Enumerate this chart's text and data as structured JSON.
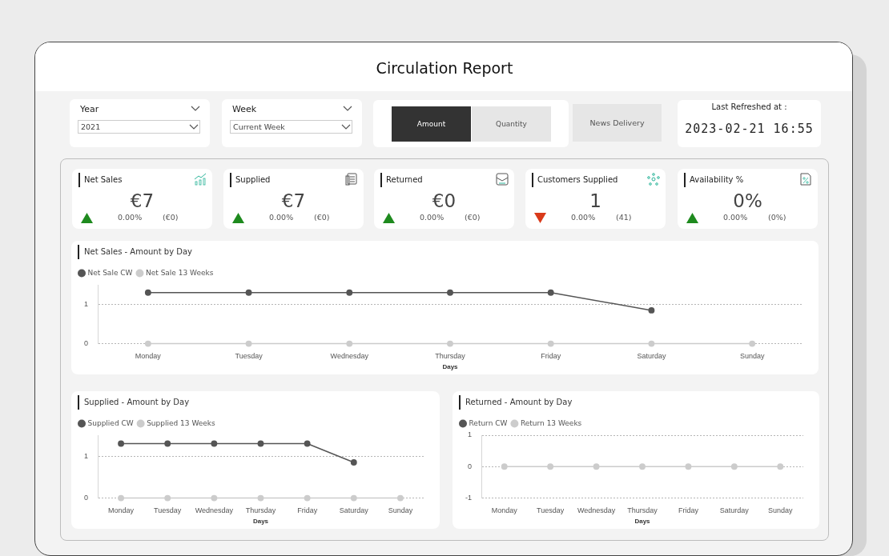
{
  "chart_data": [
    {
      "type": "other",
      "title": "Circulation Report",
      "annotations": [
        "Year",
        "2021",
        "Week",
        "Current Week",
        "Amount",
        "Quantity",
        "News Delivery",
        "Last Refreshed at :",
        "2023-02-21 16:55"
      ]
    },
    {
      "type": "other",
      "title": "Net Sales",
      "annotations": [
        "€7",
        "0.00%",
        "(€0)"
      ]
    },
    {
      "type": "other",
      "title": "Supplied",
      "annotations": [
        "€7",
        "0.00%",
        "(€0)"
      ]
    },
    {
      "type": "other",
      "title": "Returned",
      "annotations": [
        "€0",
        "0.00%",
        "(€0)"
      ]
    },
    {
      "type": "other",
      "title": "Customers Supplied",
      "annotations": [
        "1",
        "0.00%",
        "(41)"
      ]
    },
    {
      "type": "other",
      "title": "Availability %",
      "annotations": [
        "0%",
        "0.00%",
        "(0%)"
      ]
    },
    {
      "type": "line",
      "title": "Net Sales - Amount by Day",
      "xlabel": "Days",
      "categories": [
        "Monday",
        "Tuesday",
        "Wednesday",
        "Thursday",
        "Friday",
        "Saturday",
        "Sunday"
      ],
      "series": [
        {
          "name": "Net Sale CW",
          "color": "#555555",
          "values": [
            1.3,
            1.3,
            1.3,
            1.3,
            1.3,
            0.85,
            null
          ]
        },
        {
          "name": "Net Sale 13 Weeks",
          "color": "#cccccc",
          "values": [
            0,
            0,
            0,
            0,
            0,
            0,
            0
          ]
        }
      ],
      "ylim": [
        0,
        1.5
      ],
      "yticks": [
        0,
        1
      ],
      "grid": "y",
      "legend": "top left",
      "marker": "circle"
    },
    {
      "type": "line",
      "title": "Supplied - Amount by Day",
      "xlabel": "Days",
      "categories": [
        "Monday",
        "Tuesday",
        "Wednesday",
        "Thursday",
        "Friday",
        "Saturday",
        "Sunday"
      ],
      "series": [
        {
          "name": "Supplied CW",
          "color": "#555555",
          "values": [
            1.3,
            1.3,
            1.3,
            1.3,
            1.3,
            0.85,
            null
          ]
        },
        {
          "name": "Supplied 13 Weeks",
          "color": "#cccccc",
          "values": [
            0,
            0,
            0,
            0,
            0,
            0,
            0
          ]
        }
      ],
      "ylim": [
        0,
        1.5
      ],
      "yticks": [
        0,
        1
      ],
      "grid": "y",
      "legend": "top left",
      "marker": "circle"
    },
    {
      "type": "line",
      "title": "Returned - Amount by Day",
      "xlabel": "Days",
      "categories": [
        "Monday",
        "Tuesday",
        "Wednesday",
        "Thursday",
        "Friday",
        "Saturday",
        "Sunday"
      ],
      "series": [
        {
          "name": "Return CW",
          "color": "#555555",
          "values": [
            null,
            null,
            null,
            null,
            null,
            null,
            null
          ]
        },
        {
          "name": "Return 13 Weeks",
          "color": "#cccccc",
          "values": [
            0,
            0,
            0,
            0,
            0,
            0,
            0
          ]
        }
      ],
      "ylim": [
        -1,
        1
      ],
      "yticks": [
        -1,
        0,
        1
      ],
      "grid": "y",
      "legend": "top left",
      "marker": "circle"
    }
  ]
}
